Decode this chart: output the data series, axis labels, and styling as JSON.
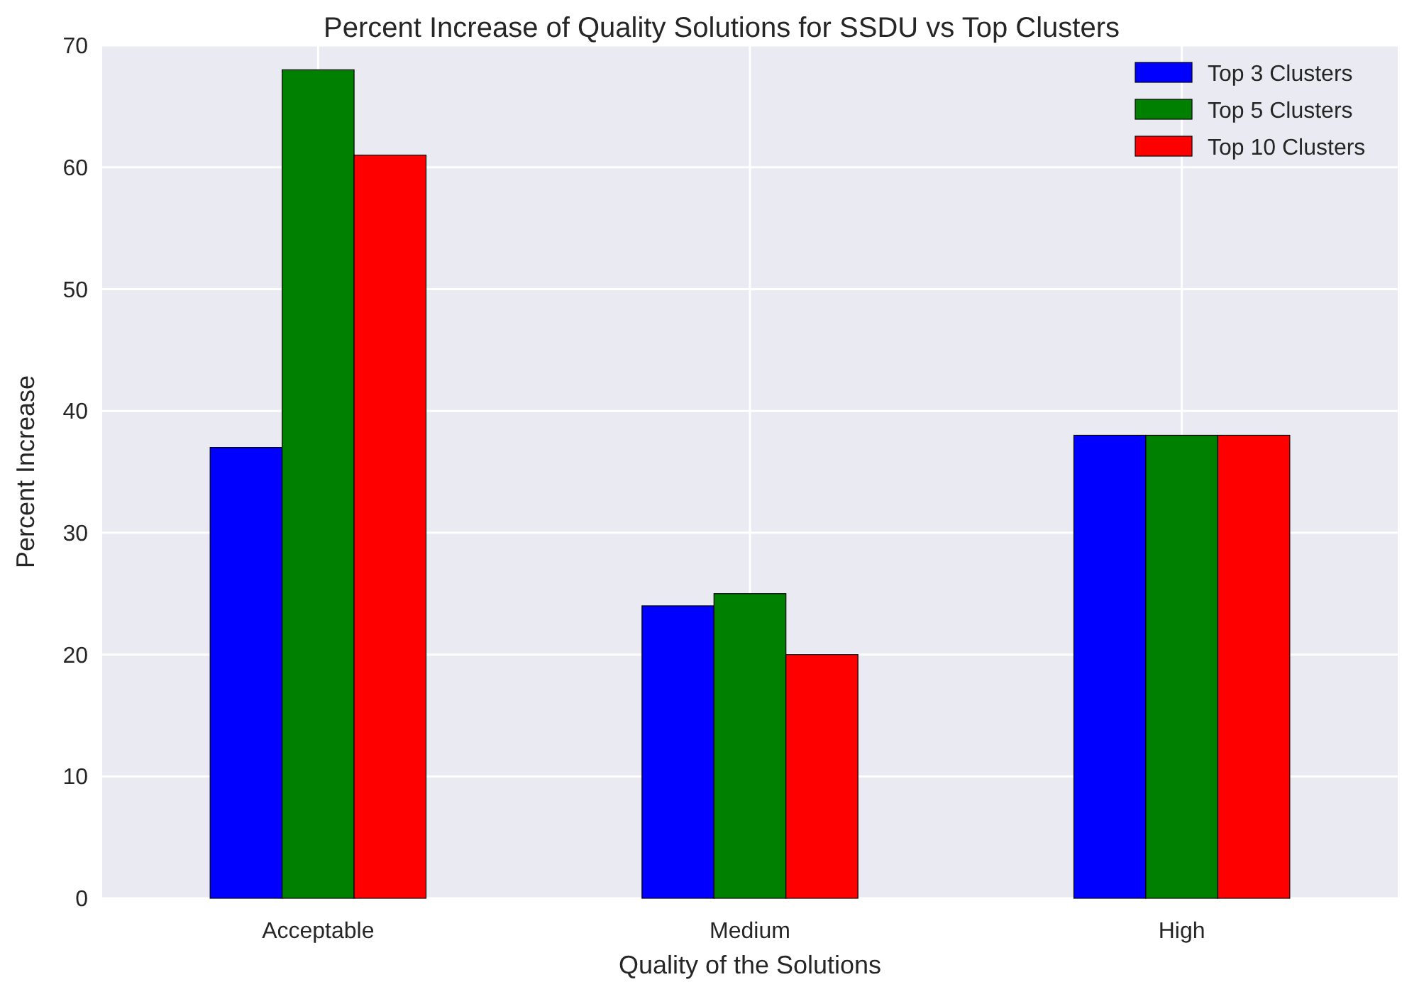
{
  "chart_data": {
    "type": "bar",
    "title": "Percent Increase of Quality Solutions for SSDU vs Top Clusters",
    "xlabel": "Quality of the Solutions",
    "ylabel": "Percent Increase",
    "categories": [
      "Acceptable",
      "Medium",
      "High"
    ],
    "series": [
      {
        "name": "Top 3 Clusters",
        "color": "#0000ff",
        "values": [
          37,
          24,
          38
        ]
      },
      {
        "name": "Top 5 Clusters",
        "color": "#008000",
        "values": [
          68,
          25,
          38
        ]
      },
      {
        "name": "Top 10 Clusters",
        "color": "#ff0000",
        "values": [
          61,
          20,
          38
        ]
      }
    ],
    "ylim": [
      0,
      70
    ],
    "yticks": [
      0,
      10,
      20,
      30,
      40,
      50,
      60,
      70
    ],
    "grid": true,
    "legend": "top right"
  }
}
